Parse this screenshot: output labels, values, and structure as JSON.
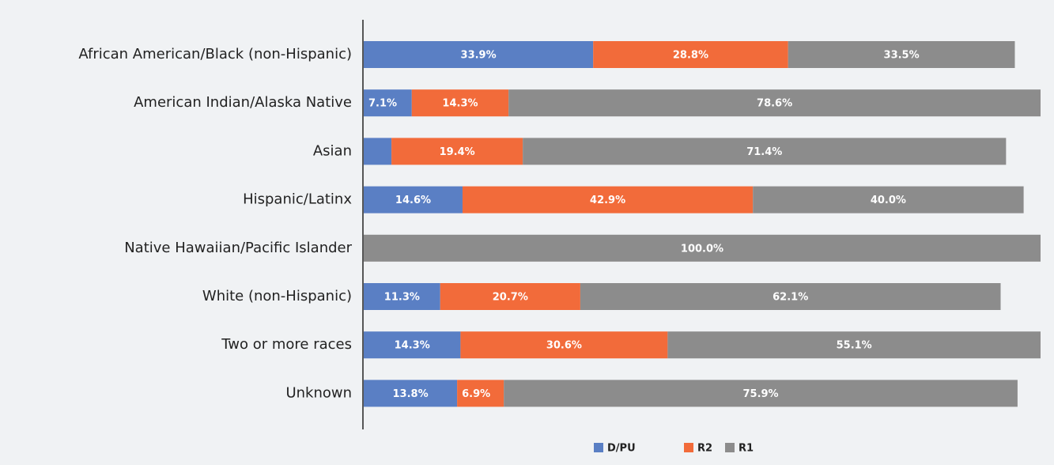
{
  "chart_data": {
    "type": "bar",
    "orientation": "horizontal",
    "categories": [
      "African American/Black (non-Hispanic)",
      "American Indian/Alaska Native",
      "Asian",
      "Hispanic/Latinx",
      "Native Hawaiian/Pacific Islander",
      "White (non-Hispanic)",
      "Two or more races",
      "Unknown"
    ],
    "series": [
      {
        "name": "D/PU",
        "color": "#5a7fc4",
        "values": [
          33.9,
          7.1,
          4.1,
          14.6,
          0,
          11.3,
          14.3,
          13.8
        ],
        "value_labels": [
          "33.9%",
          "7.1%",
          null,
          "14.6%",
          null,
          "11.3%",
          "14.3%",
          "13.8%"
        ]
      },
      {
        "name": "R2",
        "color": "#f26b3a",
        "values": [
          28.8,
          14.3,
          19.4,
          42.9,
          0,
          20.7,
          30.6,
          6.9
        ],
        "value_labels": [
          "28.8%",
          "14.3%",
          "19.4%",
          "42.9%",
          null,
          "20.7%",
          "30.6%",
          "6.9%"
        ]
      },
      {
        "name": "R1",
        "color": "#8c8c8c",
        "values": [
          33.5,
          78.6,
          71.4,
          40.0,
          100.0,
          62.1,
          55.1,
          75.9
        ],
        "value_labels": [
          "33.5%",
          "78.6%",
          "71.4%",
          "40.0%",
          "100.0%",
          "62.1%",
          "55.1%",
          "75.9%"
        ]
      }
    ],
    "xlim": [
      0,
      100
    ],
    "stacked": true,
    "legend": "bottom"
  }
}
